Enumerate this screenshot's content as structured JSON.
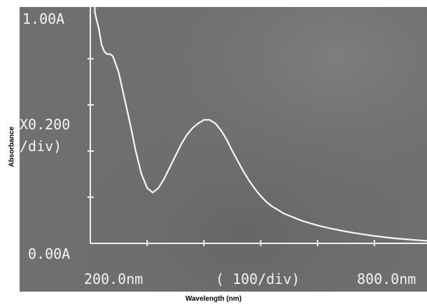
{
  "chart_data": {
    "type": "line",
    "title": "",
    "xlabel": "Wavelength (nm)",
    "ylabel": "Absorbance",
    "xlim": [
      200,
      800
    ],
    "ylim": [
      0,
      1.0
    ],
    "grid": false,
    "instrument_labels": {
      "y_top": "1.00A",
      "y_bottom": "0.00A",
      "y_scale_line1": "X0.200",
      "y_scale_line2": "/div)",
      "x_left": "200.0nm",
      "x_scale": "( 100/div)",
      "x_right": "800.0nm"
    },
    "series": [
      {
        "x": [
          208,
          215,
          220,
          225,
          230,
          235,
          240,
          250,
          260,
          270,
          280,
          290,
          300,
          310,
          320,
          330,
          340,
          350,
          360,
          370,
          380,
          390,
          400,
          410,
          420,
          430,
          440,
          450,
          460,
          470,
          480,
          490,
          500,
          510,
          520,
          530,
          540,
          550,
          560,
          570,
          580,
          590,
          600,
          620,
          640,
          660,
          680,
          700,
          720,
          740,
          760,
          780,
          800
        ],
        "y": [
          1.0,
          0.93,
          0.86,
          0.83,
          0.82,
          0.82,
          0.81,
          0.74,
          0.63,
          0.52,
          0.4,
          0.3,
          0.24,
          0.22,
          0.24,
          0.28,
          0.33,
          0.38,
          0.43,
          0.47,
          0.5,
          0.52,
          0.535,
          0.535,
          0.52,
          0.49,
          0.45,
          0.4,
          0.355,
          0.31,
          0.27,
          0.235,
          0.205,
          0.18,
          0.16,
          0.145,
          0.13,
          0.12,
          0.11,
          0.1,
          0.092,
          0.085,
          0.078,
          0.066,
          0.056,
          0.047,
          0.039,
          0.032,
          0.026,
          0.021,
          0.017,
          0.013,
          0.01
        ]
      }
    ]
  },
  "colors": {
    "screen_background": "#6f6f6f",
    "trace": "#f8f8f8",
    "axis": "#f0f0f0"
  }
}
